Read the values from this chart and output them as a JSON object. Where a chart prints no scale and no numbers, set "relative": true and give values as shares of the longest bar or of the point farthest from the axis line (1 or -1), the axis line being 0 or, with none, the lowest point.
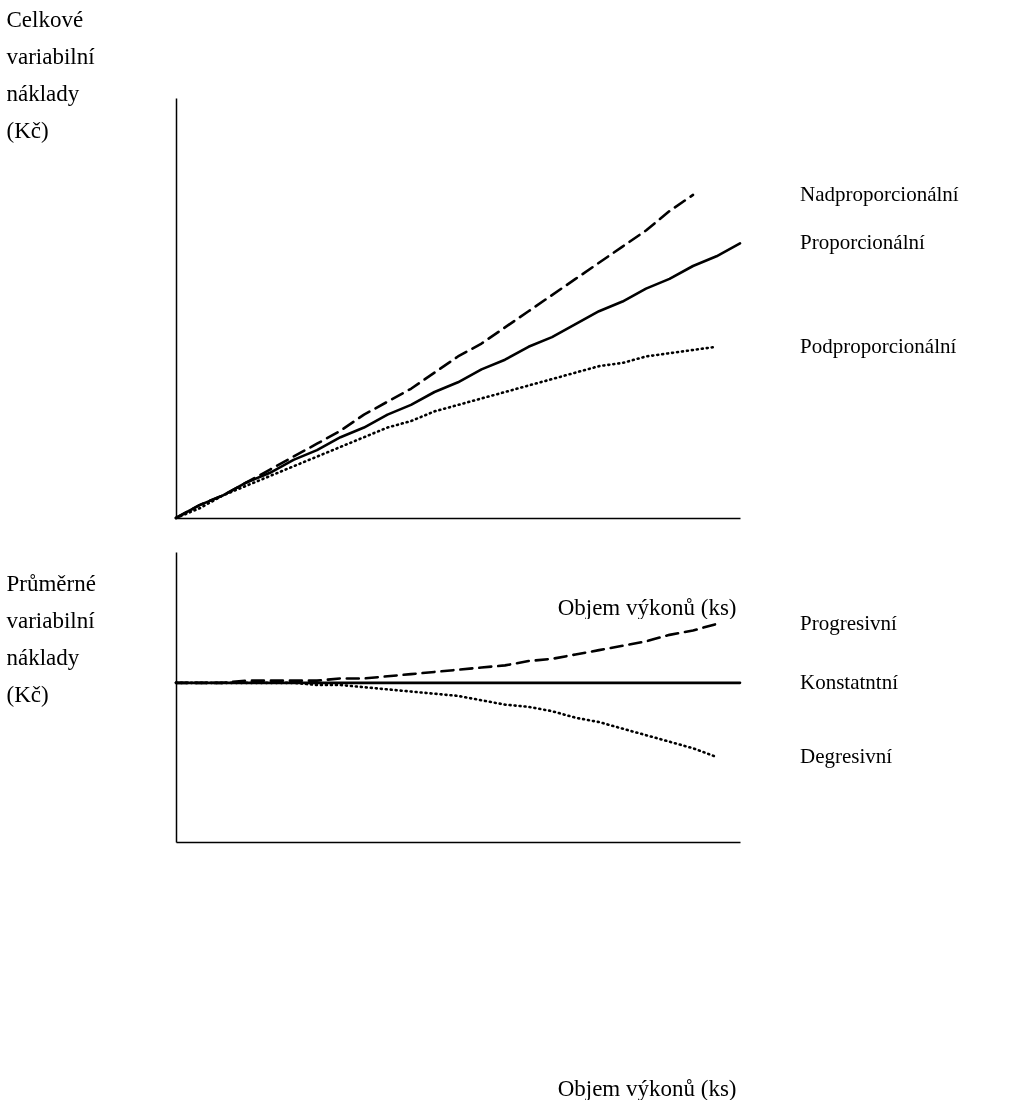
{
  "chart_data": [
    {
      "type": "line",
      "relative": true,
      "ylabel": "Celkové variabilní náklady (Kč)",
      "xlabel": "Objem výkonů (ks)",
      "legend": false,
      "categories": [
        null,
        null,
        null,
        null,
        null,
        null,
        null,
        null,
        null,
        null,
        null,
        null,
        null,
        null,
        null,
        null,
        null,
        null,
        null,
        null,
        null,
        null,
        null,
        null,
        null
      ],
      "series": [
        {
          "name": "Nadproporcionální",
          "color": "#000000",
          "line_style": "dashed",
          "values": [
            0,
            0.04,
            0.07,
            0.11,
            0.15,
            0.19,
            0.23,
            0.27,
            0.32,
            0.36,
            0.4,
            0.45,
            0.5,
            0.54,
            0.59,
            0.64,
            0.69,
            0.74,
            0.79,
            0.84,
            0.89,
            0.95,
            1,
            null,
            null
          ]
        },
        {
          "name": "Proporcionální",
          "color": "#000000",
          "line_style": "solid",
          "values": [
            0,
            0.04,
            0.07,
            0.11,
            0.14,
            0.18,
            0.21,
            0.25,
            0.28,
            0.32,
            0.35,
            0.39,
            0.42,
            0.46,
            0.49,
            0.53,
            0.56,
            0.6,
            0.64,
            0.67,
            0.71,
            0.74,
            0.78,
            0.81,
            0.85
          ]
        },
        {
          "name": "Podproporcionální",
          "color": "#000000",
          "line_style": "dotted",
          "values": [
            0,
            0.03,
            0.07,
            0.1,
            0.13,
            0.16,
            0.19,
            0.22,
            0.25,
            0.28,
            0.3,
            0.33,
            0.35,
            0.37,
            0.39,
            0.41,
            0.43,
            0.45,
            0.47,
            0.48,
            0.5,
            0.51,
            0.52,
            0.53,
            null
          ]
        }
      ]
    },
    {
      "type": "line",
      "relative": true,
      "ylabel": "Průměrné variabilní náklady (Kč)",
      "xlabel": "Objem výkonů (ks)",
      "legend": false,
      "categories": [
        null,
        null,
        null,
        null,
        null,
        null,
        null,
        null,
        null,
        null,
        null,
        null,
        null,
        null,
        null,
        null,
        null,
        null,
        null,
        null,
        null,
        null,
        null,
        null,
        null
      ],
      "series": [
        {
          "name": "Progresivní",
          "color": "#000000",
          "line_style": "dashed",
          "values": [
            0.73,
            0.73,
            0.73,
            0.74,
            0.74,
            0.74,
            0.74,
            0.75,
            0.75,
            0.76,
            0.77,
            0.78,
            0.79,
            0.8,
            0.81,
            0.83,
            0.84,
            0.86,
            0.88,
            0.9,
            0.92,
            0.95,
            0.97,
            1,
            null
          ]
        },
        {
          "name": "Konstatntní",
          "color": "#000000",
          "line_style": "solid",
          "values": [
            0.73,
            0.73,
            0.73,
            0.73,
            0.73,
            0.73,
            0.73,
            0.73,
            0.73,
            0.73,
            0.73,
            0.73,
            0.73,
            0.73,
            0.73,
            0.73,
            0.73,
            0.73,
            0.73,
            0.73,
            0.73,
            0.73,
            0.73,
            0.73,
            0.73
          ]
        },
        {
          "name": "Degresivní",
          "color": "#000000",
          "line_style": "dotted",
          "values": [
            0.73,
            0.73,
            0.73,
            0.73,
            0.73,
            0.73,
            0.72,
            0.72,
            0.71,
            0.7,
            0.69,
            0.68,
            0.67,
            0.65,
            0.63,
            0.62,
            0.6,
            0.57,
            0.55,
            0.52,
            0.49,
            0.46,
            0.43,
            0.39,
            null
          ]
        }
      ]
    }
  ]
}
